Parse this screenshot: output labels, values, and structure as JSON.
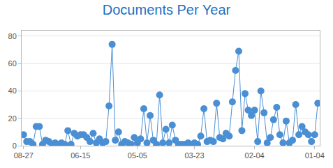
{
  "chart_data": {
    "type": "line",
    "title": "Documents Per Year",
    "marker": "circle",
    "color": "#4a8fd4",
    "grid": true,
    "categories": [
      "08-27",
      null,
      null,
      null,
      null,
      null,
      null,
      null,
      null,
      null,
      null,
      null,
      null,
      null,
      null,
      null,
      null,
      null,
      "06-15",
      null,
      null,
      null,
      null,
      null,
      null,
      null,
      null,
      null,
      null,
      null,
      null,
      null,
      null,
      null,
      null,
      null,
      "05-05",
      null,
      null,
      null,
      null,
      null,
      null,
      null,
      null,
      null,
      null,
      null,
      null,
      null,
      null,
      null,
      null,
      null,
      "03-23",
      null,
      null,
      null,
      null,
      null,
      null,
      null,
      null,
      null,
      null,
      null,
      null,
      null,
      null,
      null,
      null,
      null,
      null,
      "02-04",
      null,
      null,
      null,
      null,
      null,
      null,
      null,
      null,
      null,
      null,
      null,
      null,
      null,
      null,
      null,
      null,
      null,
      null,
      "01-04",
      null
    ],
    "values": [
      8,
      3,
      3,
      1,
      14,
      14,
      1,
      4,
      3,
      1,
      2,
      1,
      2,
      1,
      11,
      1,
      9,
      7,
      8,
      8,
      6,
      3,
      9,
      2,
      5,
      2,
      3,
      29,
      74,
      4,
      10,
      1,
      3,
      2,
      1,
      6,
      2,
      5,
      27,
      2,
      22,
      4,
      1,
      37,
      2,
      12,
      2,
      15,
      4,
      1,
      1,
      1,
      2,
      1,
      2,
      1,
      7,
      27,
      3,
      4,
      3,
      31,
      6,
      5,
      9,
      7,
      32,
      55,
      69,
      11,
      38,
      26,
      22,
      26,
      3,
      40,
      24,
      2,
      6,
      19,
      28,
      8,
      2,
      18,
      2,
      4,
      30,
      8,
      14,
      10,
      8,
      3,
      8,
      31
    ],
    "ylim": [
      0,
      84
    ],
    "yticks": [
      0,
      20,
      40,
      60,
      80
    ]
  }
}
